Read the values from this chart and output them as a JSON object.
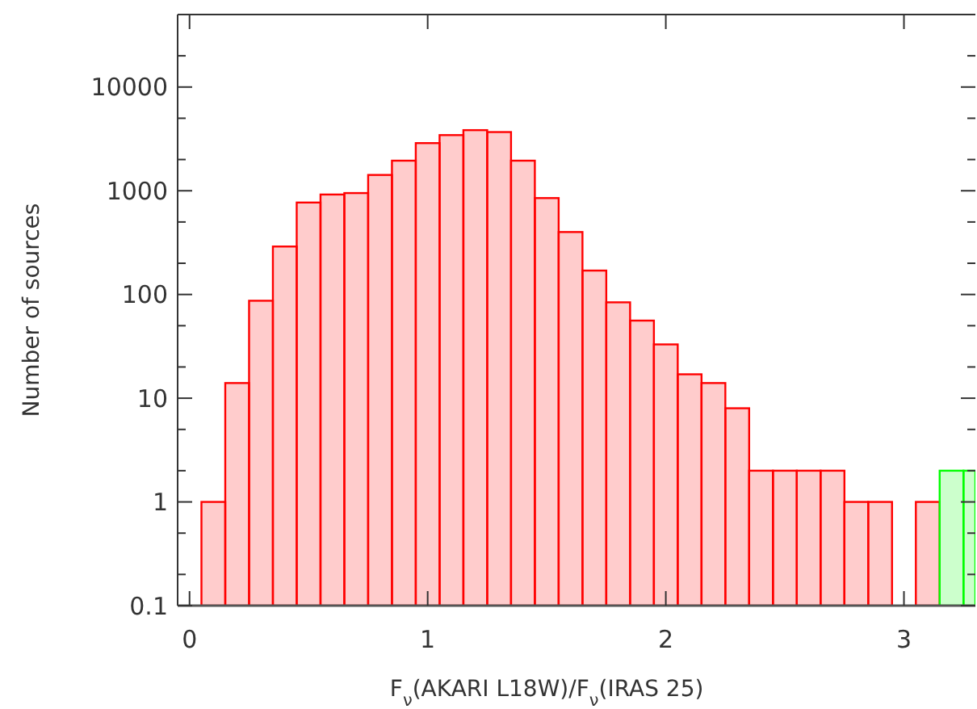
{
  "chart_data": {
    "type": "histogram",
    "xlabel": "F$_{ν}$(AKARI L18W)/F$_{ν}$(IRAS 25)",
    "ylabel": "Number of sources",
    "bins": [
      0.05,
      0.15,
      0.25,
      0.35,
      0.45,
      0.55,
      0.65,
      0.75,
      0.85,
      0.95,
      1.05,
      1.15,
      1.25,
      1.35,
      1.45,
      1.55,
      1.65,
      1.75,
      1.85,
      1.95,
      2.05,
      2.15,
      2.25,
      2.35,
      2.45,
      2.55,
      2.65,
      2.75,
      2.85,
      2.95,
      3.05,
      3.15,
      3.25,
      3.3
    ],
    "series": [
      {
        "color": "#ff0000",
        "values": [
          1,
          14,
          87,
          290,
          770,
          920,
          950,
          1420,
          1950,
          2880,
          3440,
          3840,
          3680,
          1950,
          850,
          400,
          170,
          84,
          56,
          33,
          17,
          14,
          8,
          2,
          2,
          2,
          2,
          1,
          1,
          null,
          1,
          null,
          null
        ]
      },
      {
        "color": "#00ff00",
        "values": [
          null,
          null,
          null,
          null,
          null,
          null,
          null,
          null,
          null,
          null,
          null,
          null,
          null,
          null,
          null,
          null,
          null,
          null,
          null,
          null,
          null,
          null,
          null,
          null,
          null,
          null,
          null,
          null,
          null,
          null,
          null,
          2,
          2
        ]
      }
    ],
    "log": "y",
    "xlim": [
      -0.05,
      3.3
    ],
    "ylim": [
      0.1,
      50000
    ],
    "xticks": [
      0,
      1,
      2,
      3
    ],
    "yticks": [
      0.1,
      {
        "value": 0.2,
        "label": null
      },
      {
        "value": 0.5,
        "label": null
      },
      1,
      {
        "value": 2,
        "label": null
      },
      {
        "value": 5,
        "label": null
      },
      10,
      {
        "value": 20,
        "label": null
      },
      {
        "value": 50,
        "label": null
      },
      100,
      {
        "value": 200,
        "label": null
      },
      {
        "value": 500,
        "label": null
      },
      1000,
      {
        "value": 2000,
        "label": null
      },
      {
        "value": 5000,
        "label": null
      },
      10000,
      {
        "value": 20000,
        "label": null
      }
    ],
    "grid": false
  }
}
